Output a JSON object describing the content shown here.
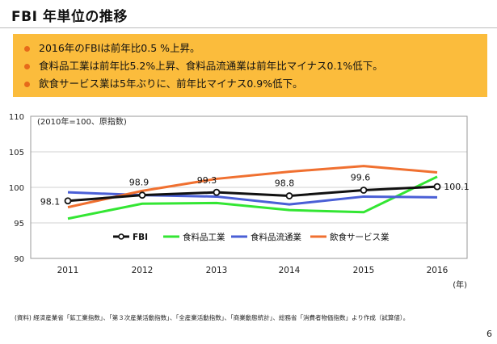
{
  "header": {
    "title": "FBI 年単位の推移"
  },
  "summary": {
    "items": [
      "2016年のFBIは前年比0.5 %上昇。",
      "食料品工業は前年比5.2%上昇、食料品流通業は前年比マイナス0.1%低下。",
      "飲食サービス業は5年ぶりに、前年比マイナス0.9%低下。"
    ],
    "bullet_color": "#e66a1a",
    "background_color": "#fbbc3c"
  },
  "chart_data": {
    "type": "line",
    "annotation": "(2010年=100、原指数)",
    "x_unit": "(年)",
    "x": [
      "2011",
      "2012",
      "2013",
      "2014",
      "2015",
      "2016"
    ],
    "ylim": [
      90,
      110
    ],
    "yticks": [
      90,
      95,
      100,
      105,
      110
    ],
    "grid": true,
    "legend_position": "lower-center",
    "series": [
      {
        "name": "FBI",
        "color": "#111111",
        "marker": "circle-open",
        "values": [
          98.1,
          98.9,
          99.3,
          98.8,
          99.6,
          100.1
        ],
        "labels": [
          "98.1",
          "98.9",
          "99.3",
          "98.8",
          "99.6",
          "100.1"
        ]
      },
      {
        "name": "食料品工業",
        "color": "#33e633",
        "values": [
          95.6,
          97.7,
          97.8,
          96.8,
          96.5,
          101.5
        ]
      },
      {
        "name": "食料品流通業",
        "color": "#4a5fd6",
        "values": [
          99.3,
          98.9,
          98.7,
          97.6,
          98.7,
          98.6
        ]
      },
      {
        "name": "飲食サービス業",
        "color": "#f07030",
        "values": [
          97.2,
          99.5,
          101.2,
          102.2,
          103.0,
          102.1
        ]
      }
    ]
  },
  "footer": {
    "source": "(資料) 経済産業省「鉱工業指数」、「第３次産業活動指数」、「全産業活動指数」、「商業動態統計」、総務省「消費者物価指数」より作成（試算値）。",
    "page_number": "6"
  }
}
